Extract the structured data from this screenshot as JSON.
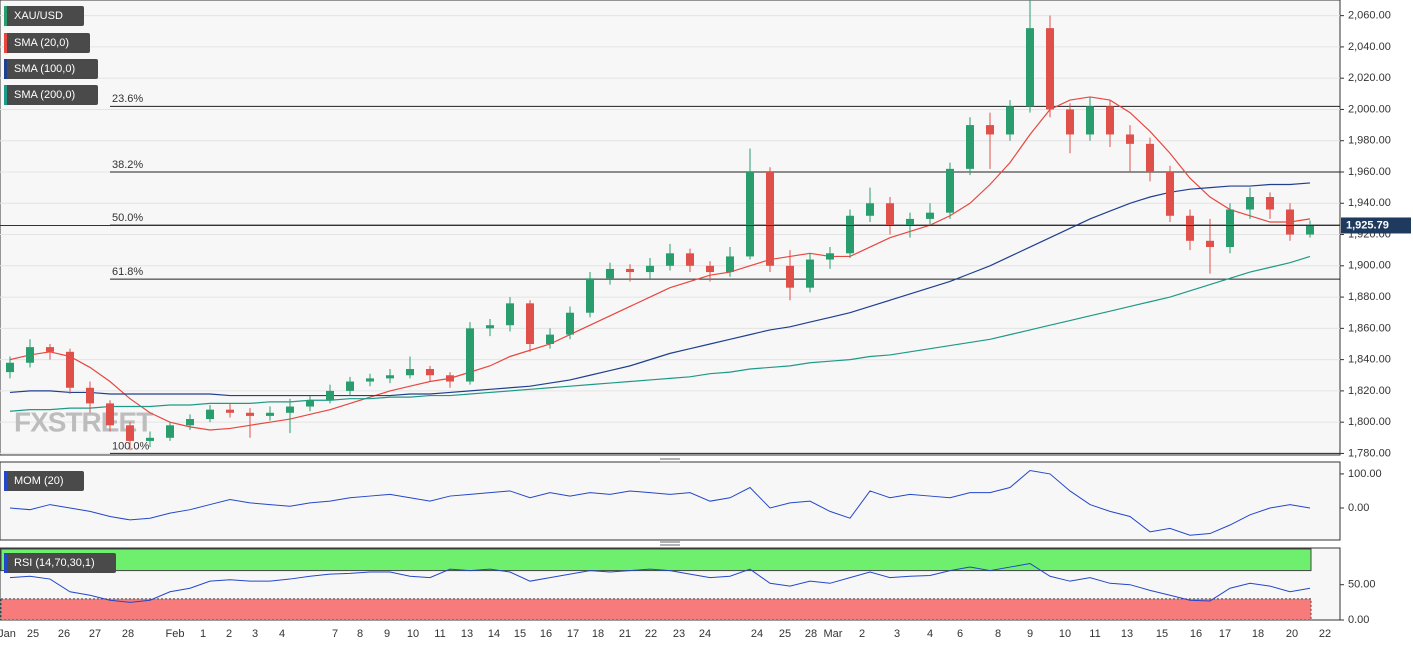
{
  "chart_data": [
    {
      "type": "candlestick",
      "title": "XAU/USD",
      "up_color": "#2a9d6f",
      "down_color": "#e0504a",
      "candles": [
        [
          1832,
          1842,
          1828,
          1838
        ],
        [
          1838,
          1853,
          1835,
          1848
        ],
        [
          1848,
          1850,
          1840,
          1845
        ],
        [
          1845,
          1847,
          1818,
          1822
        ],
        [
          1822,
          1826,
          1806,
          1812
        ],
        [
          1812,
          1814,
          1794,
          1798
        ],
        [
          1798,
          1800,
          1782,
          1788
        ],
        [
          1788,
          1794,
          1784,
          1790
        ],
        [
          1790,
          1800,
          1788,
          1798
        ],
        [
          1798,
          1805,
          1795,
          1802
        ],
        [
          1802,
          1811,
          1800,
          1808
        ],
        [
          1808,
          1812,
          1803,
          1806
        ],
        [
          1806,
          1809,
          1790,
          1804
        ],
        [
          1804,
          1810,
          1801,
          1806
        ],
        [
          1806,
          1815,
          1793,
          1810
        ],
        [
          1810,
          1817,
          1807,
          1814
        ],
        [
          1814,
          1824,
          1812,
          1820
        ],
        [
          1820,
          1829,
          1817,
          1826
        ],
        [
          1826,
          1831,
          1823,
          1828
        ],
        [
          1828,
          1834,
          1825,
          1830
        ],
        [
          1830,
          1842,
          1828,
          1834
        ],
        [
          1834,
          1836,
          1826,
          1830
        ],
        [
          1830,
          1832,
          1822,
          1826
        ],
        [
          1826,
          1864,
          1824,
          1860
        ],
        [
          1860,
          1866,
          1855,
          1862
        ],
        [
          1862,
          1880,
          1858,
          1876
        ],
        [
          1876,
          1878,
          1845,
          1850
        ],
        [
          1850,
          1860,
          1847,
          1856
        ],
        [
          1856,
          1874,
          1853,
          1870
        ],
        [
          1870,
          1896,
          1867,
          1892
        ],
        [
          1892,
          1902,
          1888,
          1898
        ],
        [
          1898,
          1901,
          1890,
          1896
        ],
        [
          1896,
          1905,
          1892,
          1900
        ],
        [
          1900,
          1914,
          1897,
          1908
        ],
        [
          1908,
          1911,
          1896,
          1900
        ],
        [
          1900,
          1903,
          1890,
          1896
        ],
        [
          1896,
          1912,
          1893,
          1906
        ],
        [
          1906,
          1975,
          1904,
          1960
        ],
        [
          1960,
          1963,
          1896,
          1900
        ],
        [
          1900,
          1910,
          1878,
          1886
        ],
        [
          1886,
          1908,
          1883,
          1904
        ],
        [
          1904,
          1912,
          1898,
          1908
        ],
        [
          1908,
          1936,
          1905,
          1932
        ],
        [
          1932,
          1950,
          1928,
          1940
        ],
        [
          1940,
          1944,
          1920,
          1926
        ],
        [
          1926,
          1934,
          1918,
          1930
        ],
        [
          1930,
          1940,
          1926,
          1934
        ],
        [
          1934,
          1966,
          1930,
          1962
        ],
        [
          1962,
          1995,
          1958,
          1990
        ],
        [
          1990,
          1998,
          1962,
          1984
        ],
        [
          1984,
          2006,
          1980,
          2002
        ],
        [
          2002,
          2070,
          1998,
          2052
        ],
        [
          2052,
          2060,
          1995,
          2000
        ],
        [
          2000,
          2004,
          1972,
          1984
        ],
        [
          1984,
          2008,
          1980,
          2002
        ],
        [
          2002,
          2006,
          1976,
          1984
        ],
        [
          1984,
          1990,
          1960,
          1978
        ],
        [
          1978,
          1982,
          1954,
          1960
        ],
        [
          1960,
          1964,
          1928,
          1932
        ],
        [
          1932,
          1936,
          1910,
          1916
        ],
        [
          1916,
          1930,
          1895,
          1912
        ],
        [
          1912,
          1940,
          1908,
          1936
        ],
        [
          1936,
          1950,
          1930,
          1944
        ],
        [
          1944,
          1947,
          1930,
          1936
        ],
        [
          1936,
          1940,
          1916,
          1920
        ],
        [
          1920,
          1929,
          1918,
          1925.79
        ]
      ],
      "series": [
        {
          "name": "SMA (20,0)",
          "color": "#e8473f",
          "values": [
            1840,
            1843,
            1845,
            1842,
            1835,
            1826,
            1815,
            1806,
            1800,
            1797,
            1795,
            1796,
            1798,
            1800,
            1802,
            1805,
            1808,
            1812,
            1816,
            1820,
            1823,
            1826,
            1828,
            1832,
            1836,
            1842,
            1846,
            1850,
            1856,
            1862,
            1868,
            1874,
            1880,
            1886,
            1890,
            1894,
            1896,
            1900,
            1904,
            1906,
            1908,
            1906,
            1906,
            1912,
            1918,
            1922,
            1926,
            1932,
            1940,
            1952,
            1966,
            1984,
            2000,
            2006,
            2008,
            2006,
            1998,
            1986,
            1972,
            1956,
            1944,
            1936,
            1932,
            1928,
            1928,
            1930
          ]
        },
        {
          "name": "SMA (100,0)",
          "color": "#1f3f8f",
          "values": [
            1819,
            1820,
            1820,
            1819,
            1819,
            1818,
            1818,
            1818,
            1818,
            1818,
            1818,
            1817,
            1817,
            1817,
            1817,
            1817,
            1817,
            1817,
            1817,
            1817,
            1818,
            1818,
            1819,
            1820,
            1821,
            1822,
            1823,
            1825,
            1827,
            1830,
            1833,
            1836,
            1840,
            1844,
            1847,
            1850,
            1853,
            1856,
            1859,
            1861,
            1864,
            1867,
            1870,
            1874,
            1878,
            1882,
            1886,
            1890,
            1895,
            1900,
            1906,
            1912,
            1918,
            1924,
            1930,
            1935,
            1940,
            1944,
            1947,
            1949,
            1950,
            1951,
            1951,
            1952,
            1952,
            1953
          ]
        },
        {
          "name": "SMA (200,0)",
          "color": "#1e9a86",
          "values": [
            1807,
            1808,
            1808,
            1809,
            1809,
            1810,
            1810,
            1810,
            1811,
            1811,
            1812,
            1812,
            1812,
            1813,
            1813,
            1814,
            1814,
            1815,
            1815,
            1816,
            1816,
            1817,
            1817,
            1818,
            1819,
            1820,
            1821,
            1822,
            1823,
            1824,
            1825,
            1826,
            1827,
            1828,
            1829,
            1831,
            1832,
            1834,
            1835,
            1836,
            1838,
            1839,
            1840,
            1842,
            1843,
            1845,
            1847,
            1849,
            1851,
            1853,
            1856,
            1859,
            1862,
            1865,
            1868,
            1871,
            1874,
            1877,
            1880,
            1884,
            1888,
            1892,
            1896,
            1899,
            1902,
            1906
          ]
        }
      ],
      "fib_levels": [
        {
          "value": 2002,
          "label": "23.6%"
        },
        {
          "value": 1960,
          "label": "38.2%"
        },
        {
          "value": 1926,
          "label": "50.0%"
        },
        {
          "value": 1891.5,
          "label": "61.8%"
        },
        {
          "value": 1780,
          "label": "100.0%"
        }
      ],
      "last_price": {
        "value": 1925.79,
        "label": "1,925.79"
      },
      "watermark": "FXSTREET",
      "ylim": [
        1779,
        2070
      ],
      "yticks": [
        {
          "value": 1780,
          "label": "1,780.00"
        },
        {
          "value": 1800,
          "label": "1,800.00"
        },
        {
          "value": 1820,
          "label": "1,820.00"
        },
        {
          "value": 1840,
          "label": "1,840.00"
        },
        {
          "value": 1860,
          "label": "1,860.00"
        },
        {
          "value": 1880,
          "label": "1,880.00"
        },
        {
          "value": 1900,
          "label": "1,900.00"
        },
        {
          "value": 1920,
          "label": "1,920.00"
        },
        {
          "value": 1940,
          "label": "1,940.00"
        },
        {
          "value": 1960,
          "label": "1,960.00"
        },
        {
          "value": 1980,
          "label": "1,980.00"
        },
        {
          "value": 2000,
          "label": "2,000.00"
        },
        {
          "value": 2020,
          "label": "2,020.00"
        },
        {
          "value": 2040,
          "label": "2,040.00"
        },
        {
          "value": 2060,
          "label": "2,060.00"
        }
      ],
      "grid": true,
      "x_labels": [
        "Jan",
        "25",
        "26",
        "27",
        "28",
        "Feb",
        "1",
        "2",
        "3",
        "4",
        "7",
        "8",
        "9",
        "10",
        "11",
        "13",
        "14",
        "15",
        "16",
        "17",
        "18",
        "21",
        "22",
        "23",
        "24",
        "24",
        "25",
        "28",
        "Mar",
        "2",
        "3",
        "4",
        "6",
        "8",
        "9",
        "10",
        "11",
        "13",
        "15",
        "16",
        "17",
        "18",
        "20",
        "22"
      ]
    },
    {
      "type": "line",
      "title": "MOM (20)",
      "color": "#2447c9",
      "values": [
        0,
        -5,
        10,
        0,
        -10,
        -25,
        -35,
        -30,
        -15,
        -5,
        10,
        25,
        15,
        10,
        5,
        15,
        20,
        30,
        35,
        40,
        30,
        20,
        35,
        40,
        45,
        50,
        30,
        45,
        35,
        45,
        40,
        50,
        45,
        40,
        45,
        20,
        30,
        60,
        0,
        15,
        20,
        -10,
        -30,
        50,
        30,
        40,
        35,
        30,
        45,
        45,
        60,
        110,
        100,
        50,
        10,
        -10,
        -25,
        -70,
        -60,
        -80,
        -75,
        -50,
        -20,
        0,
        10,
        0
      ],
      "ylim": [
        -94,
        135
      ],
      "yticks": [
        {
          "value": 0,
          "label": "0.00"
        },
        {
          "value": 100,
          "label": "100.00"
        }
      ]
    },
    {
      "type": "line",
      "title": "RSI (14,70,30,1)",
      "color": "#2447c9",
      "overbought": 70,
      "oversold": 30,
      "values": [
        60,
        62,
        58,
        40,
        35,
        28,
        25,
        28,
        40,
        45,
        55,
        57,
        55,
        55,
        58,
        62,
        65,
        66,
        68,
        68,
        62,
        60,
        72,
        70,
        72,
        68,
        55,
        60,
        65,
        70,
        68,
        70,
        72,
        70,
        65,
        60,
        62,
        72,
        52,
        48,
        55,
        52,
        60,
        68,
        60,
        62,
        63,
        70,
        75,
        70,
        75,
        80,
        62,
        55,
        60,
        52,
        50,
        42,
        35,
        28,
        27,
        45,
        52,
        48,
        40,
        45
      ],
      "ylim": [
        0,
        102
      ],
      "yticks": [
        {
          "value": 0,
          "label": "0.00"
        },
        {
          "value": 50,
          "label": "50.00"
        }
      ]
    }
  ]
}
